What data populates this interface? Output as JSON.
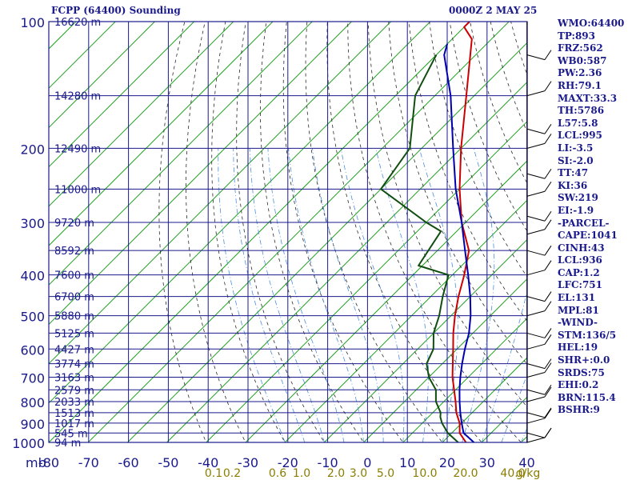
{
  "header": {
    "station": "FCPP (64400) Sounding",
    "time": "0000Z  2 MAY 25"
  },
  "indices": [
    "WMO:64400",
    "TP:893",
    "FRZ:562",
    "WB0:587",
    "PW:2.36",
    "RH:79.1",
    "MAXT:33.3",
    "TH:5786",
    "L57:5.8",
    "LCL:995",
    "LI:-3.5",
    "SI:-2.0",
    "TT:47",
    "KI:36",
    "SW:219",
    "EI:-1.9",
    "-PARCEL-",
    "CAPE:1041",
    "CINH:43",
    "LCL:936",
    "CAP:1.2",
    "LFC:751",
    "EL:131",
    "MPL:81",
    "-WIND-",
    "STM:136/5",
    "HEL:19",
    "SHR+:0.0",
    "SRDS:75",
    "EHI:0.2",
    "BRN:115.4",
    "BSHR:9"
  ],
  "chart_data": {
    "type": "skew-t",
    "xlabel": "mb",
    "pressure_ticks": [
      "100",
      "200",
      "300",
      "400",
      "500",
      "600",
      "700",
      "800",
      "900",
      "1000"
    ],
    "pressure_values": [
      100,
      200,
      300,
      400,
      500,
      600,
      700,
      800,
      900,
      1000
    ],
    "height_labels": [
      {
        "p": 100,
        "label": "16620 m"
      },
      {
        "p": 150,
        "label": "14280 m"
      },
      {
        "p": 200,
        "label": "12490 m"
      },
      {
        "p": 250,
        "label": "11000 m"
      },
      {
        "p": 300,
        "label": "9720 m"
      },
      {
        "p": 350,
        "label": "8592 m"
      },
      {
        "p": 400,
        "label": "7600 m"
      },
      {
        "p": 450,
        "label": "6700 m"
      },
      {
        "p": 500,
        "label": "5880 m"
      },
      {
        "p": 550,
        "label": "5125 m"
      },
      {
        "p": 600,
        "label": "4427 m"
      },
      {
        "p": 650,
        "label": "3774 m"
      },
      {
        "p": 700,
        "label": "3163 m"
      },
      {
        "p": 750,
        "label": "2579 m"
      },
      {
        "p": 800,
        "label": "2033 m"
      },
      {
        "p": 850,
        "label": "1513 m"
      },
      {
        "p": 900,
        "label": "1017 m"
      },
      {
        "p": 950,
        "label": "545 m"
      },
      {
        "p": 1000,
        "label": "94 m"
      }
    ],
    "temperature_ticks": [
      "-80",
      "-70",
      "-60",
      "-50",
      "-40",
      "-30",
      "-20",
      "-10",
      "0",
      "10",
      "20",
      "30",
      "40"
    ],
    "temperature_values": [
      -80,
      -70,
      -60,
      -50,
      -40,
      -30,
      -20,
      -10,
      0,
      10,
      20,
      30,
      40
    ],
    "mixing_ratio_labels": [
      "0.1",
      "0.2",
      "0.6",
      "1.0",
      "2.0",
      "3.0",
      "5.0",
      "10.0",
      "20.0",
      "40.0",
      "g/kg"
    ],
    "mixing_ratio_values": [
      0.1,
      0.2,
      0.6,
      1.0,
      2.0,
      3.0,
      5.0,
      10.0,
      20.0,
      40.0
    ],
    "series": [
      {
        "role": "temperature",
        "color": "#cc0000",
        "points": [
          [
            1000,
            26
          ],
          [
            950,
            22
          ],
          [
            900,
            19.5
          ],
          [
            850,
            16
          ],
          [
            800,
            13
          ],
          [
            700,
            6
          ],
          [
            600,
            -1
          ],
          [
            550,
            -5
          ],
          [
            500,
            -9
          ],
          [
            450,
            -13
          ],
          [
            400,
            -17
          ],
          [
            350,
            -22
          ],
          [
            300,
            -31
          ],
          [
            250,
            -40
          ],
          [
            200,
            -50
          ],
          [
            150,
            -62
          ],
          [
            110,
            -75
          ],
          [
            103,
            -80
          ],
          [
            100,
            -80
          ]
        ]
      },
      {
        "role": "dewpoint",
        "color": "#104e10",
        "points": [
          [
            1000,
            24
          ],
          [
            950,
            19
          ],
          [
            900,
            15
          ],
          [
            870,
            13
          ],
          [
            850,
            12
          ],
          [
            800,
            8
          ],
          [
            750,
            5
          ],
          [
            700,
            0
          ],
          [
            650,
            -4
          ],
          [
            600,
            -6
          ],
          [
            550,
            -10
          ],
          [
            500,
            -13
          ],
          [
            450,
            -17
          ],
          [
            400,
            -21
          ],
          [
            380,
            -31
          ],
          [
            315,
            -34
          ],
          [
            300,
            -40
          ],
          [
            250,
            -60
          ],
          [
            200,
            -63
          ],
          [
            150,
            -75
          ],
          [
            120,
            -80
          ]
        ]
      },
      {
        "role": "parcel",
        "color": "#0000b0",
        "points": [
          [
            1000,
            28
          ],
          [
            950,
            23
          ],
          [
            900,
            20
          ],
          [
            850,
            17
          ],
          [
            800,
            14
          ],
          [
            750,
            11
          ],
          [
            700,
            8
          ],
          [
            650,
            5
          ],
          [
            600,
            2
          ],
          [
            550,
            -1
          ],
          [
            500,
            -5
          ],
          [
            450,
            -10
          ],
          [
            400,
            -16
          ],
          [
            350,
            -23
          ],
          [
            300,
            -31
          ],
          [
            250,
            -41
          ],
          [
            200,
            -52
          ],
          [
            150,
            -66
          ],
          [
            120,
            -78
          ],
          [
            113,
            -80
          ]
        ]
      }
    ],
    "wind_barbs": true,
    "colors": {
      "grid": "#1a1a8c",
      "isotherm": "#20a020",
      "dry_adiabat": "#2a2a2a",
      "moist_adiabat": "#4a8fe0",
      "mixing_ratio_label": "#8b7d00"
    }
  }
}
